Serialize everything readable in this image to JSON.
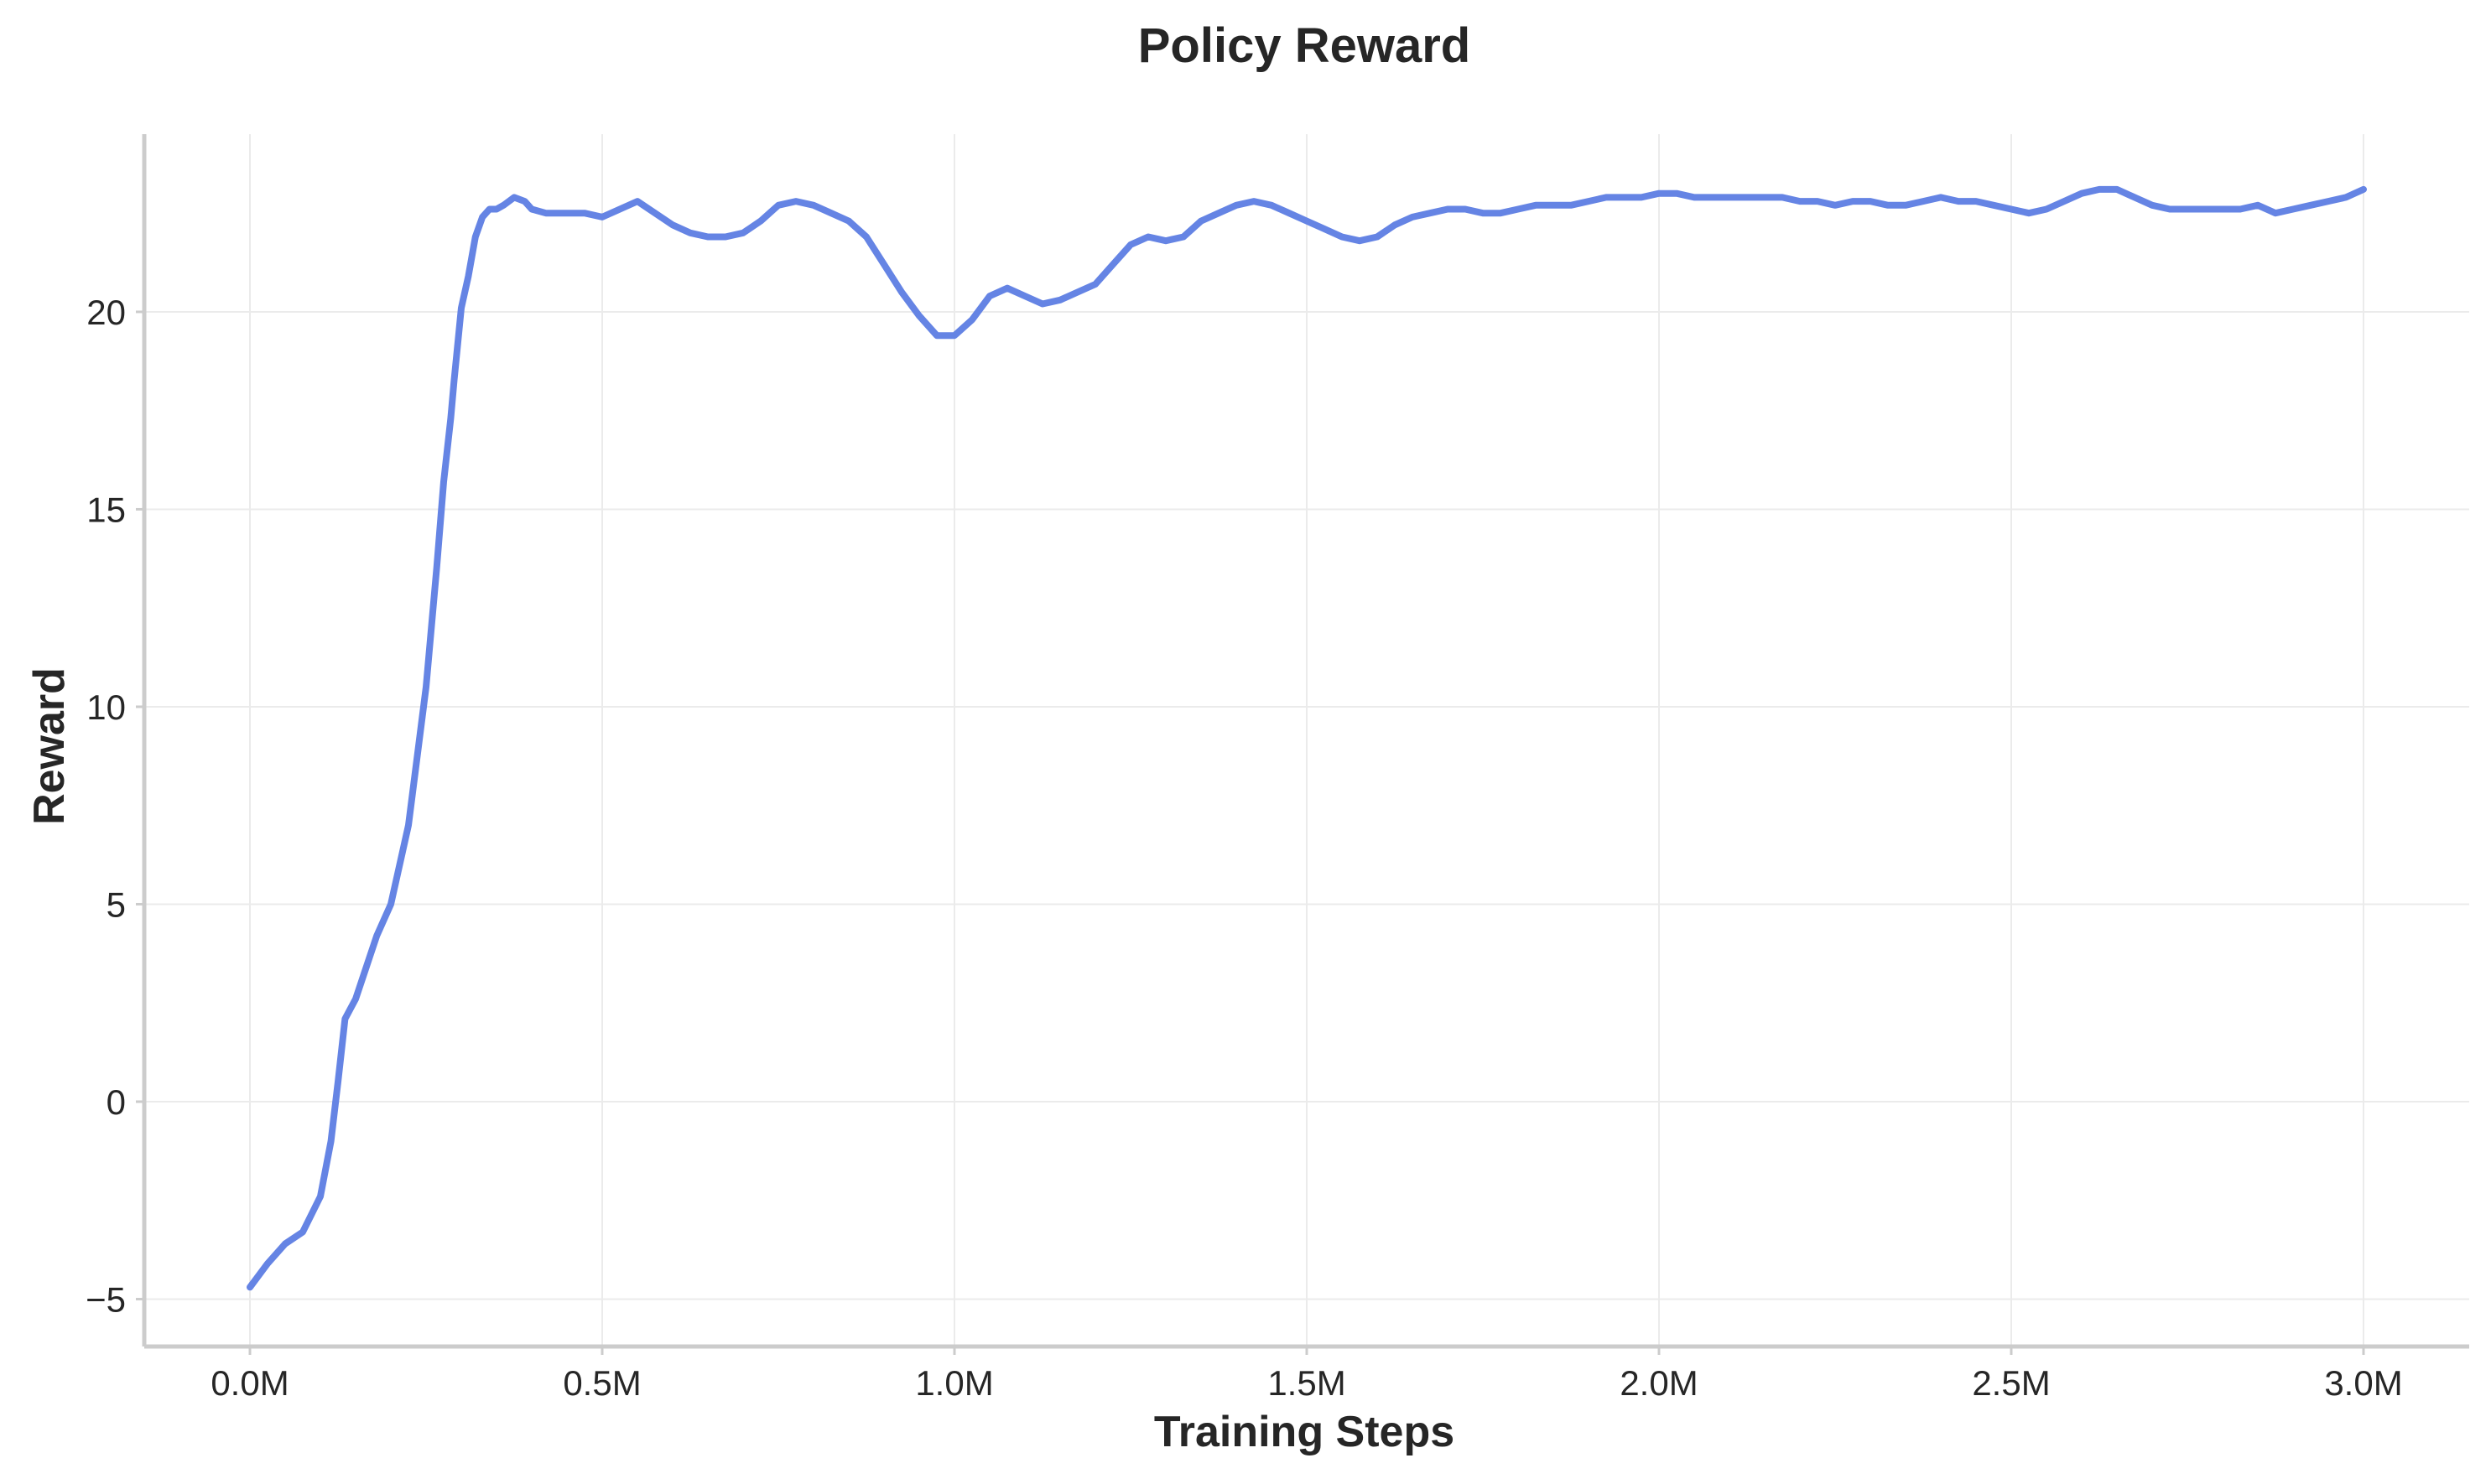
{
  "chart_data": {
    "type": "line",
    "title": "Policy Reward",
    "xlabel": "Training Steps",
    "ylabel": "Reward",
    "xlim": [
      -150000,
      3150000
    ],
    "ylim": [
      -6.2,
      24.5
    ],
    "x_ticks": [
      {
        "value": 0,
        "label": "0.0M"
      },
      {
        "value": 500000,
        "label": "0.5M"
      },
      {
        "value": 1000000,
        "label": "1.0M"
      },
      {
        "value": 1500000,
        "label": "1.5M"
      },
      {
        "value": 2000000,
        "label": "2.0M"
      },
      {
        "value": 2500000,
        "label": "2.5M"
      },
      {
        "value": 3000000,
        "label": "3.0M"
      }
    ],
    "y_ticks": [
      {
        "value": -5,
        "label": "−5"
      },
      {
        "value": 0,
        "label": "0"
      },
      {
        "value": 5,
        "label": "5"
      },
      {
        "value": 10,
        "label": "10"
      },
      {
        "value": 15,
        "label": "15"
      },
      {
        "value": 20,
        "label": "20"
      }
    ],
    "grid": true,
    "legend": "none",
    "colors": {
      "line": "#6584e4",
      "text": "#262626",
      "grid": "#ebebeb",
      "spine": "#cccccc"
    },
    "series": [
      {
        "x": [
          0,
          25000,
          50000,
          75000,
          100000,
          115000,
          125000,
          135000,
          150000,
          165000,
          180000,
          200000,
          225000,
          250000,
          265000,
          275000,
          285000,
          290000,
          295000,
          300000,
          310000,
          320000,
          330000,
          340000,
          350000,
          360000,
          375000,
          390000,
          400000,
          420000,
          450000,
          475000,
          500000,
          525000,
          550000,
          575000,
          600000,
          625000,
          650000,
          675000,
          700000,
          725000,
          750000,
          775000,
          800000,
          825000,
          850000,
          875000,
          900000,
          925000,
          950000,
          975000,
          1000000,
          1025000,
          1050000,
          1075000,
          1100000,
          1125000,
          1150000,
          1175000,
          1200000,
          1225000,
          1250000,
          1275000,
          1300000,
          1325000,
          1350000,
          1375000,
          1400000,
          1425000,
          1450000,
          1475000,
          1500000,
          1525000,
          1550000,
          1575000,
          1600000,
          1625000,
          1650000,
          1675000,
          1700000,
          1725000,
          1750000,
          1775000,
          1800000,
          1825000,
          1850000,
          1875000,
          1900000,
          1925000,
          1950000,
          1975000,
          2000000,
          2025000,
          2050000,
          2075000,
          2100000,
          2125000,
          2150000,
          2175000,
          2200000,
          2225000,
          2250000,
          2275000,
          2300000,
          2325000,
          2350000,
          2375000,
          2400000,
          2425000,
          2450000,
          2475000,
          2500000,
          2525000,
          2550000,
          2575000,
          2600000,
          2625000,
          2650000,
          2675000,
          2700000,
          2725000,
          2750000,
          2775000,
          2800000,
          2825000,
          2850000,
          2875000,
          2900000,
          2925000,
          2950000,
          2975000,
          3000000
        ],
        "values": [
          -4.7,
          -4.1,
          -3.6,
          -3.3,
          -2.4,
          -1.0,
          0.5,
          2.1,
          2.6,
          3.4,
          4.2,
          5.0,
          7.0,
          10.5,
          13.5,
          15.7,
          17.3,
          18.3,
          19.2,
          20.1,
          20.9,
          21.9,
          22.4,
          22.6,
          22.6,
          22.7,
          22.9,
          22.8,
          22.6,
          22.5,
          22.5,
          22.5,
          22.4,
          22.6,
          22.8,
          22.5,
          22.2,
          22.0,
          21.9,
          21.9,
          22.0,
          22.3,
          22.7,
          22.8,
          22.7,
          22.5,
          22.3,
          21.9,
          21.2,
          20.5,
          19.9,
          19.4,
          19.4,
          19.8,
          20.4,
          20.6,
          20.4,
          20.2,
          20.3,
          20.5,
          20.7,
          21.2,
          21.7,
          21.9,
          21.8,
          21.9,
          22.3,
          22.5,
          22.7,
          22.8,
          22.7,
          22.5,
          22.3,
          22.1,
          21.9,
          21.8,
          21.9,
          22.2,
          22.4,
          22.5,
          22.6,
          22.6,
          22.5,
          22.5,
          22.6,
          22.7,
          22.7,
          22.7,
          22.8,
          22.9,
          22.9,
          22.9,
          23.0,
          23.0,
          22.9,
          22.9,
          22.9,
          22.9,
          22.9,
          22.9,
          22.8,
          22.8,
          22.7,
          22.8,
          22.8,
          22.7,
          22.7,
          22.8,
          22.9,
          22.8,
          22.8,
          22.7,
          22.6,
          22.5,
          22.6,
          22.8,
          23.0,
          23.1,
          23.1,
          22.9,
          22.7,
          22.6,
          22.6,
          22.6,
          22.6,
          22.6,
          22.7,
          22.5,
          22.6,
          22.7,
          22.8,
          22.9,
          23.1
        ]
      }
    ]
  }
}
